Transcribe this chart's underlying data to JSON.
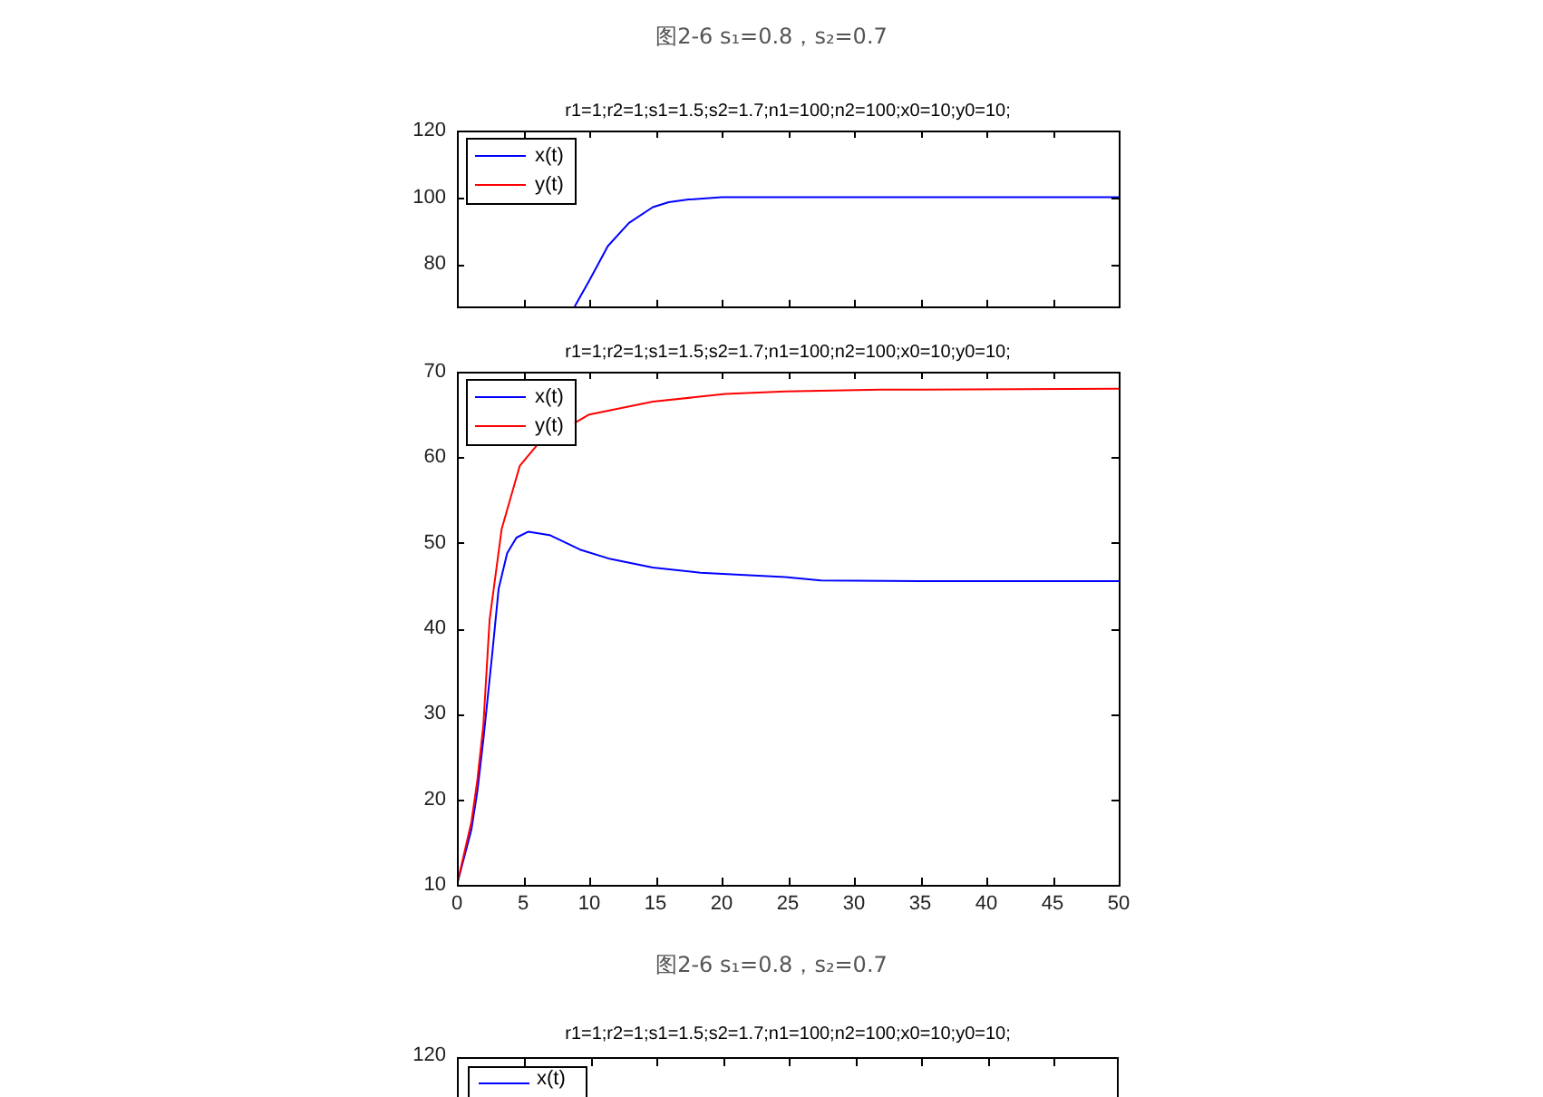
{
  "chart_data": [
    {
      "type": "line",
      "title": "r1=1;r2=1;s1=1.5;s2=1.7;n1=100;n2=100;x0=10;y0=10;",
      "annotations": [
        "图2-6 s₁=0.8，s₂=0.7"
      ],
      "legend": "top left",
      "marker": "none",
      "tick_labels": "y",
      "xlim": [
        0,
        50
      ],
      "xticks": [
        {
          "value": 0,
          "label": null
        },
        {
          "value": 5,
          "label": null
        },
        {
          "value": 10,
          "label": null
        },
        {
          "value": 15,
          "label": null
        },
        {
          "value": 20,
          "label": null
        },
        {
          "value": 25,
          "label": null
        },
        {
          "value": 30,
          "label": null
        },
        {
          "value": 35,
          "label": null
        },
        {
          "value": 40,
          "label": null
        },
        {
          "value": 45,
          "label": null
        },
        {
          "value": 50,
          "label": null
        }
      ],
      "ylim": [
        67,
        120
      ],
      "yticks": [
        80,
        100,
        120
      ],
      "series": [
        {
          "name": "x(t)",
          "color": "#0000ff",
          "x": [
            8.9,
            10,
            11.4,
            13,
            14.8,
            16,
            17.5,
            20,
            30,
            50
          ],
          "values": [
            67.2,
            75,
            85.3,
            92.3,
            97,
            98.5,
            99.3,
            100,
            100,
            100
          ]
        },
        {
          "name": "y(t)",
          "color": "#ff0000"
        }
      ]
    },
    {
      "type": "line",
      "title": "r1=1;r2=1;s1=1.5;s2=1.7;n1=100;n2=100;x0=10;y0=10;",
      "legend": "top left",
      "marker": "none",
      "xlim": [
        0,
        50
      ],
      "xticks": [
        0,
        5,
        10,
        15,
        20,
        25,
        30,
        35,
        40,
        45,
        50
      ],
      "ylim": [
        10,
        70
      ],
      "yticks": [
        10,
        20,
        30,
        40,
        50,
        60,
        70
      ],
      "series": [
        {
          "name": "x(t)",
          "color": "#0000ff",
          "x": [
            0,
            1.1,
            1.55,
            2,
            2.7,
            3.15,
            3.8,
            4.5,
            5.4,
            7,
            9.3,
            11.6,
            14.8,
            18.4,
            24.8,
            27.5,
            35,
            50
          ],
          "values": [
            10,
            16.5,
            21,
            27,
            37.5,
            44.6,
            48.8,
            50.6,
            51.3,
            50.9,
            49.2,
            48.1,
            47.1,
            46.5,
            46,
            45.6,
            45.5,
            45.5
          ]
        },
        {
          "name": "y(t)",
          "color": "#ff0000",
          "x": [
            0,
            1.1,
            1.55,
            2,
            2.47,
            3.38,
            4.75,
            6.1,
            10,
            14.8,
            20.3,
            24.8,
            32,
            50
          ],
          "values": [
            10,
            17.4,
            22.3,
            28.7,
            41,
            51.6,
            59,
            61.5,
            65,
            66.5,
            67.4,
            67.7,
            67.9,
            68
          ]
        }
      ]
    },
    {
      "type": "other",
      "title": "r1=1;r2=1;s1=1.5;s2=1.7;n1=100;n2=100;x0=10;y0=10;",
      "annotations": [
        "图2-6 s₁=0.8，s₂=0.7",
        "120",
        "x(t)"
      ]
    }
  ]
}
